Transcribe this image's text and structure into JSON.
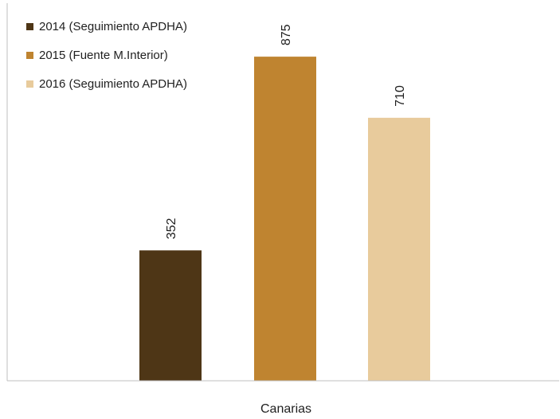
{
  "chart_data": {
    "type": "bar",
    "categories": [
      "Canarias"
    ],
    "series": [
      {
        "name": "2014 (Seguimiento APDHA)",
        "values": [
          352
        ],
        "color": "#4e3616"
      },
      {
        "name": "2015 (Fuente M.Interior)",
        "values": [
          875
        ],
        "color": "#bf8430"
      },
      {
        "name": "2016 (Seguimiento APDHA)",
        "values": [
          710
        ],
        "color": "#e8cb9c"
      }
    ],
    "ylim": [
      0,
      1000
    ],
    "grid": false,
    "legend": "top-left",
    "data_labels": true
  }
}
